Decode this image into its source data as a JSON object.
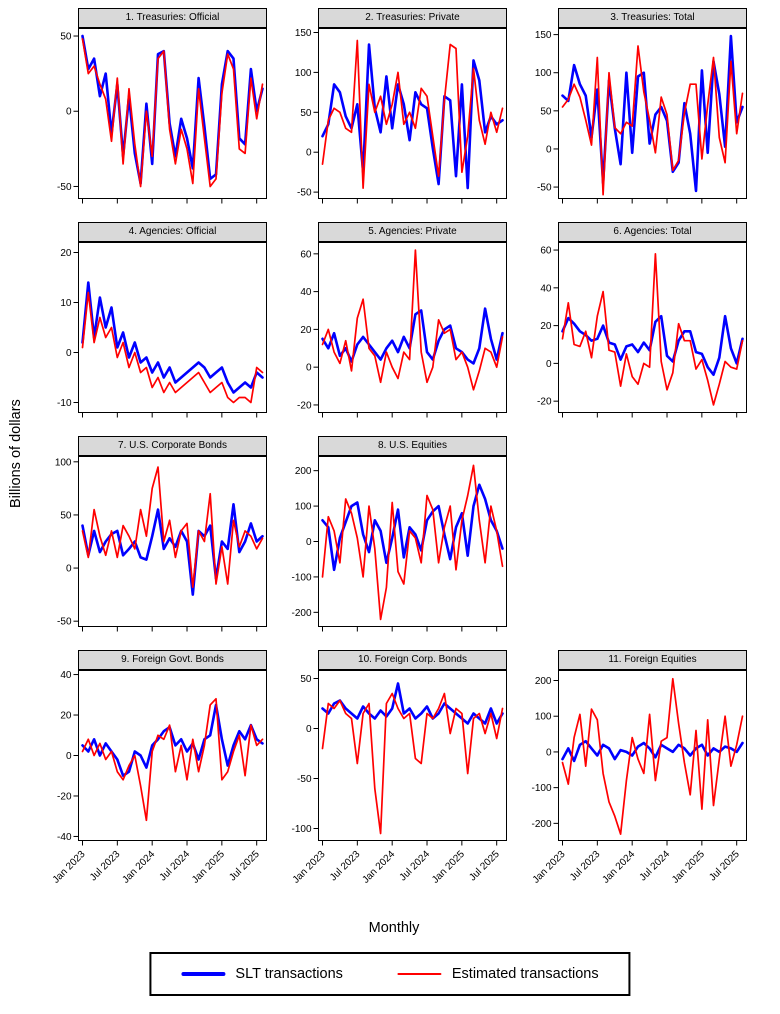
{
  "figure": {
    "ylabel": "Billions of dollars",
    "xlabel": "Monthly"
  },
  "legend": {
    "items": [
      {
        "label": "SLT transactions",
        "color": "#0000ff"
      },
      {
        "label": "Estimated transactions",
        "color": "#ff0000"
      }
    ]
  },
  "x_axis": {
    "unit": "month",
    "start": "Jan 2023",
    "end": "Aug 2025",
    "n_points": 32,
    "tick_indices": [
      0,
      6,
      12,
      18,
      24,
      30
    ],
    "tick_labels": [
      "Jan 2023",
      "Jul 2023",
      "Jan 2024",
      "Jul 2024",
      "Jan 2025",
      "Jul 2025"
    ]
  },
  "chart_data": [
    {
      "type": "line",
      "title": "1. Treasuries: Official",
      "ylim": [
        -58,
        55
      ],
      "yticks": [
        -50,
        0,
        50
      ],
      "series": [
        {
          "name": "SLT transactions",
          "color": "#0000ff",
          "values": [
            50,
            28,
            35,
            10,
            25,
            -15,
            18,
            -30,
            10,
            -28,
            -48,
            5,
            -35,
            38,
            40,
            -8,
            -30,
            -5,
            -18,
            -38,
            22,
            -10,
            -45,
            -42,
            18,
            40,
            35,
            -18,
            -22,
            28,
            0,
            15
          ]
        },
        {
          "name": "Estimated transactions",
          "color": "#ff0000",
          "values": [
            48,
            25,
            30,
            18,
            8,
            -20,
            22,
            -35,
            15,
            -22,
            -50,
            0,
            -30,
            35,
            40,
            -12,
            -35,
            -12,
            -25,
            -48,
            15,
            -18,
            -50,
            -45,
            12,
            38,
            28,
            -25,
            -28,
            22,
            -5,
            18
          ]
        }
      ]
    },
    {
      "type": "line",
      "title": "2. Treasuries: Private",
      "ylim": [
        -58,
        155
      ],
      "yticks": [
        -50,
        0,
        50,
        100,
        150
      ],
      "series": [
        {
          "name": "SLT transactions",
          "color": "#0000ff",
          "values": [
            20,
            35,
            85,
            75,
            45,
            30,
            60,
            -25,
            135,
            55,
            25,
            95,
            30,
            85,
            60,
            15,
            75,
            60,
            55,
            5,
            -40,
            70,
            65,
            -30,
            85,
            -45,
            115,
            90,
            25,
            45,
            35,
            40
          ]
        },
        {
          "name": "Estimated transactions",
          "color": "#ff0000",
          "values": [
            -15,
            40,
            55,
            50,
            30,
            25,
            140,
            -45,
            85,
            50,
            70,
            35,
            60,
            100,
            35,
            50,
            30,
            80,
            70,
            20,
            -30,
            65,
            135,
            130,
            -25,
            20,
            105,
            40,
            10,
            50,
            25,
            55
          ]
        }
      ]
    },
    {
      "type": "line",
      "title": "3. Treasuries: Total",
      "ylim": [
        -65,
        158
      ],
      "yticks": [
        -50,
        0,
        50,
        100,
        150
      ],
      "series": [
        {
          "name": "SLT transactions",
          "color": "#0000ff",
          "values": [
            70,
            63,
            110,
            85,
            70,
            15,
            78,
            -45,
            90,
            27,
            -20,
            100,
            -5,
            95,
            100,
            7,
            45,
            55,
            37,
            -30,
            -18,
            60,
            20,
            -55,
            103,
            -5,
            115,
            72,
            3,
            148,
            35,
            55
          ]
        },
        {
          "name": "Estimated transactions",
          "color": "#ff0000",
          "values": [
            55,
            65,
            85,
            68,
            38,
            5,
            120,
            -60,
            100,
            28,
            20,
            35,
            30,
            135,
            75,
            38,
            -5,
            68,
            45,
            -28,
            -15,
            47,
            85,
            85,
            -13,
            58,
            120,
            15,
            -18,
            115,
            20,
            73
          ]
        }
      ]
    },
    {
      "type": "line",
      "title": "4. Agencies: Official",
      "ylim": [
        -12,
        22
      ],
      "yticks": [
        -10,
        0,
        10,
        20
      ],
      "series": [
        {
          "name": "SLT transactions",
          "color": "#0000ff",
          "values": [
            2,
            14,
            3,
            11,
            5,
            9,
            1,
            4,
            -1,
            2,
            -2,
            -1,
            -4,
            -2,
            -5,
            -3,
            -6,
            -5,
            -4,
            -3,
            -2,
            -3,
            -5,
            -4,
            -3,
            -6,
            -8,
            -7,
            -6,
            -7,
            -4,
            -5
          ]
        },
        {
          "name": "Estimated transactions",
          "color": "#ff0000",
          "values": [
            1,
            12,
            2,
            7,
            3,
            5,
            -1,
            2,
            -3,
            0,
            -4,
            -3,
            -7,
            -5,
            -8,
            -6,
            -8,
            -7,
            -6,
            -5,
            -4,
            -6,
            -8,
            -7,
            -6,
            -9,
            -10,
            -9,
            -9,
            -10,
            -3,
            -4
          ]
        }
      ]
    },
    {
      "type": "line",
      "title": "5. Agencies: Private",
      "ylim": [
        -24,
        66
      ],
      "yticks": [
        -20,
        0,
        20,
        40,
        60
      ],
      "series": [
        {
          "name": "SLT transactions",
          "color": "#0000ff",
          "values": [
            15,
            10,
            18,
            6,
            10,
            3,
            12,
            16,
            12,
            8,
            4,
            10,
            14,
            8,
            16,
            10,
            28,
            30,
            8,
            4,
            14,
            20,
            22,
            10,
            8,
            4,
            2,
            10,
            31,
            15,
            4,
            18
          ]
        },
        {
          "name": "Estimated transactions",
          "color": "#ff0000",
          "values": [
            12,
            20,
            8,
            2,
            14,
            -2,
            26,
            36,
            10,
            6,
            -8,
            8,
            0,
            -6,
            8,
            4,
            62,
            8,
            -8,
            0,
            25,
            18,
            20,
            4,
            8,
            0,
            -12,
            -2,
            10,
            8,
            0,
            16
          ]
        }
      ]
    },
    {
      "type": "line",
      "title": "6. Agencies: Total",
      "ylim": [
        -26,
        64
      ],
      "yticks": [
        -20,
        0,
        20,
        40,
        60
      ],
      "series": [
        {
          "name": "SLT transactions",
          "color": "#0000ff",
          "values": [
            17,
            24,
            21,
            17,
            15,
            12,
            13,
            20,
            11,
            10,
            2,
            9,
            10,
            6,
            11,
            7,
            22,
            25,
            4,
            1,
            12,
            17,
            17,
            6,
            5,
            -2,
            -6,
            3,
            25,
            8,
            0,
            13
          ]
        },
        {
          "name": "Estimated transactions",
          "color": "#ff0000",
          "values": [
            13,
            32,
            10,
            9,
            17,
            3,
            25,
            38,
            7,
            6,
            -12,
            5,
            -7,
            -11,
            0,
            -2,
            58,
            1,
            -14,
            -5,
            21,
            12,
            12,
            -3,
            2,
            -9,
            -22,
            -11,
            1,
            -2,
            -3,
            12
          ]
        }
      ]
    },
    {
      "type": "line",
      "title": "7. U.S. Corporate Bonds",
      "ylim": [
        -55,
        105
      ],
      "yticks": [
        -50,
        0,
        50,
        100
      ],
      "series": [
        {
          "name": "SLT transactions",
          "color": "#0000ff",
          "values": [
            40,
            12,
            35,
            15,
            25,
            32,
            35,
            12,
            18,
            25,
            10,
            8,
            30,
            55,
            18,
            28,
            20,
            35,
            25,
            -25,
            35,
            30,
            40,
            -10,
            25,
            18,
            60,
            15,
            25,
            42,
            25,
            30
          ]
        },
        {
          "name": "Estimated transactions",
          "color": "#ff0000",
          "values": [
            35,
            10,
            55,
            30,
            12,
            35,
            10,
            40,
            30,
            18,
            55,
            30,
            75,
            95,
            25,
            45,
            10,
            35,
            42,
            -18,
            35,
            25,
            70,
            -15,
            20,
            -15,
            45,
            20,
            35,
            30,
            18,
            28
          ]
        }
      ]
    },
    {
      "type": "line",
      "title": "8. U.S. Equities",
      "ylim": [
        -240,
        240
      ],
      "yticks": [
        -200,
        -100,
        0,
        100,
        200
      ],
      "series": [
        {
          "name": "SLT transactions",
          "color": "#0000ff",
          "values": [
            60,
            40,
            -80,
            10,
            55,
            100,
            110,
            20,
            -30,
            60,
            30,
            -60,
            10,
            90,
            -45,
            40,
            20,
            -25,
            60,
            85,
            100,
            20,
            -50,
            40,
            80,
            -40,
            100,
            160,
            120,
            60,
            30,
            -20
          ]
        },
        {
          "name": "Estimated transactions",
          "color": "#ff0000",
          "values": [
            -100,
            70,
            30,
            -60,
            120,
            80,
            10,
            -100,
            100,
            -20,
            -220,
            -130,
            110,
            -85,
            -120,
            30,
            10,
            -60,
            130,
            90,
            -60,
            40,
            100,
            -80,
            60,
            130,
            215,
            60,
            -60,
            100,
            30,
            -70
          ]
        }
      ]
    },
    {
      "type": "line",
      "title": "9. Foreign Govt. Bonds",
      "ylim": [
        -42,
        42
      ],
      "yticks": [
        -40,
        -20,
        0,
        20,
        40
      ],
      "series": [
        {
          "name": "SLT transactions",
          "color": "#0000ff",
          "values": [
            5,
            2,
            8,
            0,
            6,
            2,
            -2,
            -10,
            -8,
            2,
            0,
            -6,
            5,
            8,
            12,
            14,
            5,
            8,
            2,
            6,
            -2,
            8,
            10,
            25,
            8,
            -5,
            5,
            12,
            8,
            15,
            8,
            6
          ]
        },
        {
          "name": "Estimated transactions",
          "color": "#ff0000",
          "values": [
            2,
            8,
            0,
            6,
            -2,
            2,
            -8,
            -12,
            -5,
            0,
            -15,
            -32,
            2,
            10,
            8,
            15,
            -8,
            5,
            -12,
            8,
            -8,
            5,
            25,
            28,
            -12,
            -8,
            2,
            10,
            -10,
            15,
            5,
            8
          ]
        }
      ]
    },
    {
      "type": "line",
      "title": "10. Foreign Corp. Bonds",
      "ylim": [
        -112,
        58
      ],
      "yticks": [
        -100,
        -50,
        0,
        50
      ],
      "series": [
        {
          "name": "SLT transactions",
          "color": "#0000ff",
          "values": [
            20,
            15,
            25,
            28,
            20,
            15,
            10,
            22,
            15,
            10,
            18,
            12,
            20,
            45,
            15,
            20,
            10,
            15,
            22,
            10,
            15,
            25,
            20,
            15,
            10,
            5,
            15,
            10,
            5,
            20,
            5,
            15
          ]
        },
        {
          "name": "Estimated transactions",
          "color": "#ff0000",
          "values": [
            -20,
            25,
            20,
            28,
            15,
            10,
            -35,
            15,
            25,
            -60,
            -105,
            25,
            35,
            20,
            10,
            15,
            -30,
            -35,
            15,
            10,
            20,
            35,
            -5,
            20,
            15,
            -45,
            10,
            15,
            -5,
            15,
            -10,
            20
          ]
        }
      ]
    },
    {
      "type": "line",
      "title": "11. Foreign Equities",
      "ylim": [
        -248,
        228
      ],
      "yticks": [
        -200,
        -100,
        0,
        100,
        200
      ],
      "series": [
        {
          "name": "SLT transactions",
          "color": "#0000ff",
          "values": [
            -20,
            10,
            -25,
            20,
            30,
            10,
            -10,
            20,
            10,
            -20,
            5,
            0,
            -10,
            15,
            25,
            10,
            -15,
            20,
            10,
            0,
            20,
            10,
            -10,
            10,
            20,
            -10,
            10,
            0,
            15,
            10,
            0,
            25
          ]
        },
        {
          "name": "Estimated transactions",
          "color": "#ff0000",
          "values": [
            -30,
            -90,
            40,
            105,
            -40,
            120,
            90,
            -60,
            -140,
            -180,
            -230,
            -80,
            40,
            -20,
            -60,
            105,
            -80,
            30,
            40,
            205,
            80,
            -30,
            -120,
            60,
            -160,
            90,
            -150,
            -20,
            100,
            -40,
            20,
            100
          ]
        }
      ]
    }
  ]
}
